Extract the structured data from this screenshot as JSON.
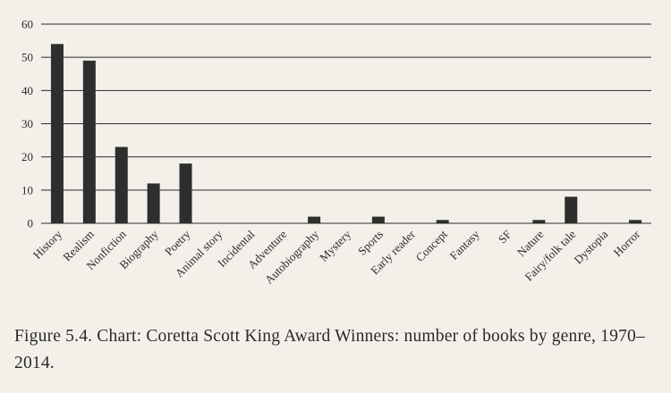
{
  "caption": "Figure 5.4. Chart: Coretta Scott King Award Winners: number of books by genre, 1970–2014.",
  "chart_data": {
    "type": "bar",
    "title": "",
    "xlabel": "",
    "ylabel": "",
    "ylim": [
      0,
      60
    ],
    "yticks": [
      0,
      10,
      20,
      30,
      40,
      50,
      60
    ],
    "grid": true,
    "bar_color": "#2e2e2e",
    "categories": [
      "History",
      "Realism",
      "Nonfiction",
      "Biography",
      "Poetry",
      "Animal story",
      "Incidental",
      "Adventure",
      "Autobiography",
      "Mystery",
      "Sports",
      "Early reader",
      "Concept",
      "Fantasy",
      "SF",
      "Nature",
      "Fairy/folk tale",
      "Dystopia",
      "Horror"
    ],
    "values": [
      54,
      49,
      23,
      12,
      18,
      0,
      0,
      0,
      2,
      0,
      2,
      0,
      1,
      0,
      0,
      1,
      8,
      0,
      1
    ]
  }
}
